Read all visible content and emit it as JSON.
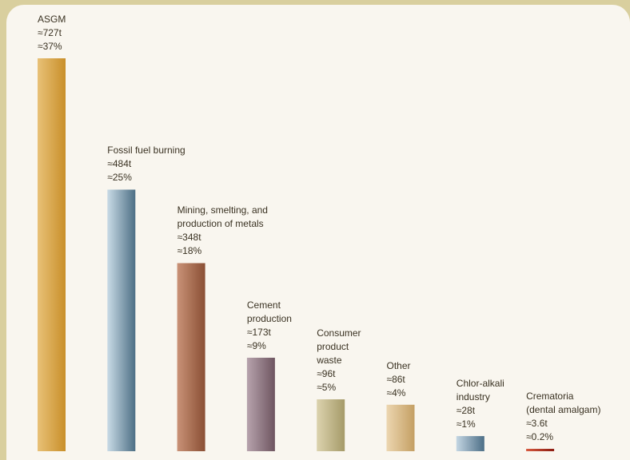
{
  "chart_data": {
    "type": "bar",
    "title": "",
    "xlabel": "",
    "ylabel": "",
    "ylim": [
      0,
      727
    ],
    "grid": false,
    "legend": "none",
    "bars": [
      {
        "label_lines": [
          "ASGM"
        ],
        "value": 727,
        "value_label": "≈727t",
        "percent_label": "≈37%",
        "color_dark": "#c98f2a",
        "color_light": "#e8c177"
      },
      {
        "label_lines": [
          "Fossil fuel burning"
        ],
        "value": 484,
        "value_label": "≈484t",
        "percent_label": "≈25%",
        "color_dark": "#4d6f85",
        "color_light": "#c9dbe6"
      },
      {
        "label_lines": [
          "Mining, smelting, and",
          "production of metals"
        ],
        "value": 348,
        "value_label": "≈348t",
        "percent_label": "≈18%",
        "color_dark": "#8a4f34",
        "color_light": "#c99277"
      },
      {
        "label_lines": [
          "Cement",
          "production"
        ],
        "value": 173,
        "value_label": "≈173t",
        "percent_label": "≈9%",
        "color_dark": "#6e5560",
        "color_light": "#b7a3ad"
      },
      {
        "label_lines": [
          "Consumer",
          "product",
          "waste"
        ],
        "value": 96,
        "value_label": "≈96t",
        "percent_label": "≈5%",
        "color_dark": "#a59a68",
        "color_light": "#dcd3ae"
      },
      {
        "label_lines": [
          "Other"
        ],
        "value": 86,
        "value_label": "≈86t",
        "percent_label": "≈4%",
        "color_dark": "#c49f63",
        "color_light": "#ecd6b0"
      },
      {
        "label_lines": [
          "Chlor-alkali",
          "industry"
        ],
        "value": 28,
        "value_label": "≈28t",
        "percent_label": "≈1%",
        "color_dark": "#4c6e86",
        "color_light": "#c4d6e3"
      },
      {
        "label_lines": [
          "Crematoria",
          "(dental amalgam)"
        ],
        "value": 3.6,
        "value_label": "≈3.6t",
        "percent_label": "≈0.2%",
        "color_dark": "#8c1b10",
        "color_light": "#d75a40"
      }
    ]
  }
}
